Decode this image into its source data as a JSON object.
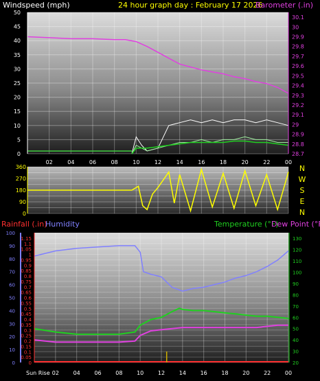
{
  "header": {
    "left_title": "Windspeed (mph)",
    "center_title": "24 hour graph day : February 17 2026",
    "right_title": "Barometer (.in)"
  },
  "x_ticks": [
    "02",
    "04",
    "06",
    "08",
    "10",
    "12",
    "14",
    "16",
    "18",
    "20",
    "22",
    "00"
  ],
  "bottom_x_first": "Sun Rise",
  "colors": {
    "wind_axis": "#ffffff",
    "barometer": "#e040e0",
    "title_center": "#ffff00",
    "direction": "#ffff00",
    "rain": "#ff3030",
    "humidity": "#8080ff",
    "temperature": "#20d020",
    "dewpoint": "#e040e0"
  },
  "chart_data": [
    {
      "type": "line",
      "title": "24 hour graph day : February 17 2026",
      "x_label": "",
      "y_label_left": "Windspeed (mph)",
      "y_label_right": "Barometer (.in)",
      "ylim_left": [
        0,
        50
      ],
      "ylim_right": [
        28.7,
        30.15
      ],
      "left_ticks": [
        0,
        5,
        10,
        15,
        20,
        25,
        30,
        35,
        40,
        45,
        50
      ],
      "right_ticks": [
        "28.7",
        "28.8",
        "28.9",
        "29",
        "29.1",
        "29.2",
        "29.3",
        "29.4",
        "29.5",
        "29.6",
        "29.7",
        "29.8",
        "29.9",
        "30",
        "30.1"
      ],
      "grid": true,
      "x_hours": [
        0,
        24
      ],
      "series": [
        {
          "name": "Barometer (.in)",
          "axis": "right",
          "points": [
            [
              0,
              29.9
            ],
            [
              2,
              29.89
            ],
            [
              4,
              29.88
            ],
            [
              6,
              29.88
            ],
            [
              8,
              29.87
            ],
            [
              9,
              29.87
            ],
            [
              10,
              29.85
            ],
            [
              11,
              29.8
            ],
            [
              12,
              29.74
            ],
            [
              13,
              29.68
            ],
            [
              14,
              29.62
            ],
            [
              15,
              29.59
            ],
            [
              16,
              29.56
            ],
            [
              17,
              29.54
            ],
            [
              18,
              29.52
            ],
            [
              19,
              29.49
            ],
            [
              20,
              29.47
            ],
            [
              21,
              29.44
            ],
            [
              22,
              29.42
            ],
            [
              23,
              29.38
            ],
            [
              24,
              29.32
            ]
          ]
        },
        {
          "name": "Wind gust",
          "axis": "left",
          "points": [
            [
              9.6,
              0
            ],
            [
              10,
              6
            ],
            [
              10.5,
              3
            ],
            [
              11,
              1
            ],
            [
              12,
              2
            ],
            [
              12.5,
              6
            ],
            [
              13,
              10
            ],
            [
              14,
              11
            ],
            [
              15,
              12
            ],
            [
              16,
              11
            ],
            [
              17,
              12
            ],
            [
              18,
              11
            ],
            [
              19,
              12
            ],
            [
              20,
              12
            ],
            [
              21,
              11
            ],
            [
              22,
              12
            ],
            [
              23,
              11
            ],
            [
              24,
              10
            ]
          ]
        },
        {
          "name": "Wind speed",
          "axis": "left",
          "points": [
            [
              9.6,
              0
            ],
            [
              10,
              3
            ],
            [
              11,
              1
            ],
            [
              12,
              2
            ],
            [
              13,
              3
            ],
            [
              14,
              4
            ],
            [
              15,
              4
            ],
            [
              16,
              5
            ],
            [
              17,
              4
            ],
            [
              18,
              5
            ],
            [
              19,
              5
            ],
            [
              20,
              6
            ],
            [
              21,
              5
            ],
            [
              22,
              5
            ],
            [
              23,
              4
            ],
            [
              24,
              4
            ]
          ]
        },
        {
          "name": "Wind average",
          "axis": "left",
          "points": [
            [
              9.6,
              0
            ],
            [
              10,
              2
            ],
            [
              11,
              2
            ],
            [
              12,
              2.5
            ],
            [
              13,
              3
            ],
            [
              14,
              3.5
            ],
            [
              15,
              4
            ],
            [
              16,
              4
            ],
            [
              17,
              4
            ],
            [
              18,
              4
            ],
            [
              19,
              4.5
            ],
            [
              20,
              4.5
            ],
            [
              21,
              4
            ],
            [
              22,
              4
            ],
            [
              23,
              3.5
            ],
            [
              24,
              3
            ]
          ]
        }
      ]
    },
    {
      "type": "scatter",
      "title": "",
      "ylim": [
        0,
        360
      ],
      "ticks": [
        0,
        45,
        90,
        135,
        180,
        225,
        270,
        315,
        360
      ],
      "tick_labels": [
        "0",
        "",
        "90",
        "",
        "180",
        "",
        "270",
        "",
        "360"
      ],
      "compass": [
        "N",
        "W",
        "S",
        "E",
        "N"
      ],
      "grid": true,
      "series": [
        {
          "name": "",
          "points": [
            [
              0,
              180
            ],
            [
              9.6,
              180
            ],
            [
              10.2,
              210
            ],
            [
              10.6,
              60
            ],
            [
              11,
              30
            ],
            [
              11.5,
              150
            ],
            [
              12,
              200
            ],
            [
              12.5,
              260
            ],
            [
              13,
              320
            ],
            [
              13.5,
              80
            ],
            [
              14,
              300
            ],
            [
              15,
              20
            ],
            [
              16,
              340
            ],
            [
              17,
              50
            ],
            [
              18,
              310
            ],
            [
              19,
              40
            ],
            [
              20,
              330
            ],
            [
              21,
              60
            ],
            [
              22,
              300
            ],
            [
              23,
              30
            ],
            [
              24,
              320
            ]
          ]
        }
      ]
    },
    {
      "type": "line",
      "title": "",
      "y_label_left": "Rainfall (.in)",
      "y_label_left2": "Humidity",
      "y_label_right": "Temperature (°F)",
      "y_label_right2": "Dew Point (°F)",
      "ylim_humidity": [
        0,
        100
      ],
      "ylim_rain": [
        0,
        1.2
      ],
      "ylim_temp": [
        20,
        135
      ],
      "humidity_ticks": [
        0,
        10,
        20,
        30,
        40,
        50,
        60,
        70,
        80,
        90,
        100
      ],
      "rain_ticks": [
        "0",
        "0.05",
        "0.1",
        "0.15",
        "0.2",
        "0.25",
        "0.3",
        "0.35",
        "0.4",
        "0.45",
        "0.5",
        "0.55",
        "0.6",
        "0.65",
        "0.7",
        "0.75",
        "0.8",
        "0.85",
        "0.9",
        "0.95",
        "1",
        "1.05",
        "1.1",
        "1.15"
      ],
      "temp_ticks": [
        20,
        30,
        40,
        50,
        60,
        70,
        80,
        90,
        100,
        110,
        120,
        130
      ],
      "grid": true,
      "series": [
        {
          "name": "Humidity",
          "axis": "humidity",
          "points": [
            [
              0,
              82
            ],
            [
              2,
              86
            ],
            [
              4,
              88
            ],
            [
              6,
              89
            ],
            [
              8,
              90
            ],
            [
              9.5,
              90
            ],
            [
              10,
              85
            ],
            [
              10.3,
              70
            ],
            [
              11,
              68
            ],
            [
              12,
              66
            ],
            [
              13,
              58
            ],
            [
              14,
              55
            ],
            [
              15,
              57
            ],
            [
              16,
              58
            ],
            [
              17,
              60
            ],
            [
              18,
              62
            ],
            [
              19,
              65
            ],
            [
              20,
              67
            ],
            [
              21,
              70
            ],
            [
              22,
              74
            ],
            [
              23,
              79
            ],
            [
              24,
              86
            ]
          ]
        },
        {
          "name": "Temperature (°F)",
          "axis": "temp",
          "points": [
            [
              0,
              50
            ],
            [
              2,
              47
            ],
            [
              4,
              45
            ],
            [
              6,
              45
            ],
            [
              8,
              45
            ],
            [
              9.5,
              47
            ],
            [
              10,
              53
            ],
            [
              11,
              58
            ],
            [
              12,
              60
            ],
            [
              13,
              65
            ],
            [
              13.7,
              68
            ],
            [
              14,
              67
            ],
            [
              15,
              66
            ],
            [
              16,
              66
            ],
            [
              17,
              65
            ],
            [
              18,
              64
            ],
            [
              19,
              63
            ],
            [
              20,
              62
            ],
            [
              21,
              61
            ],
            [
              22,
              61
            ],
            [
              23,
              60
            ],
            [
              24,
              59
            ]
          ]
        },
        {
          "name": "Dew Point (°F)",
          "axis": "temp",
          "points": [
            [
              0,
              40
            ],
            [
              2,
              38
            ],
            [
              4,
              38
            ],
            [
              6,
              38
            ],
            [
              8,
              38
            ],
            [
              9.5,
              39
            ],
            [
              10,
              44
            ],
            [
              11,
              48
            ],
            [
              12,
              49
            ],
            [
              13,
              50
            ],
            [
              14,
              51
            ],
            [
              15,
              51
            ],
            [
              16,
              51
            ],
            [
              17,
              51
            ],
            [
              18,
              51
            ],
            [
              19,
              51
            ],
            [
              20,
              51
            ],
            [
              21,
              51
            ],
            [
              22,
              52
            ],
            [
              23,
              53
            ],
            [
              24,
              53
            ]
          ]
        },
        {
          "name": "Rainfall (.in)",
          "axis": "rain",
          "points": [
            [
              0,
              0
            ],
            [
              24,
              0
            ]
          ]
        }
      ]
    }
  ]
}
